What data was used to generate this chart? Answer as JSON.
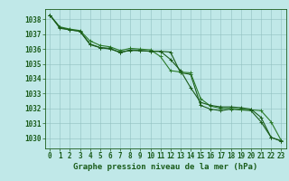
{
  "title": "Graphe pression niveau de la mer (hPa)",
  "background_color": "#c0e8e8",
  "grid_color": "#90c0c0",
  "line_color1": "#1a5c1a",
  "line_color2": "#2a7a2a",
  "line_color3": "#1a5c1a",
  "xlim": [
    -0.5,
    23.5
  ],
  "ylim": [
    1029.3,
    1038.7
  ],
  "yticks": [
    1030,
    1031,
    1032,
    1033,
    1034,
    1035,
    1036,
    1037,
    1038
  ],
  "xticks": [
    0,
    1,
    2,
    3,
    4,
    5,
    6,
    7,
    8,
    9,
    10,
    11,
    12,
    13,
    14,
    15,
    16,
    17,
    18,
    19,
    20,
    21,
    22,
    23
  ],
  "series1": [
    1038.3,
    1037.4,
    1037.3,
    1037.2,
    1036.3,
    1036.1,
    1036.0,
    1035.8,
    1035.9,
    1035.9,
    1035.85,
    1035.85,
    1035.8,
    1034.4,
    1034.3,
    1032.2,
    1031.95,
    1031.85,
    1031.95,
    1031.9,
    1031.85,
    1031.1,
    1030.05,
    1029.8
  ],
  "series2": [
    1038.3,
    1037.5,
    1037.35,
    1037.25,
    1036.55,
    1036.25,
    1036.15,
    1035.9,
    1036.05,
    1036.0,
    1035.95,
    1035.5,
    1034.55,
    1034.45,
    1034.4,
    1032.65,
    1032.15,
    1032.0,
    1032.0,
    1031.95,
    1031.9,
    1031.85,
    1031.1,
    1029.85
  ],
  "series3": [
    1038.3,
    1037.45,
    1037.3,
    1037.2,
    1036.35,
    1036.1,
    1036.05,
    1035.75,
    1035.95,
    1035.9,
    1035.85,
    1035.85,
    1035.3,
    1034.55,
    1033.4,
    1032.4,
    1032.2,
    1032.1,
    1032.1,
    1032.05,
    1031.95,
    1031.4,
    1030.05,
    1029.8
  ],
  "marker": "+",
  "marker_size": 3,
  "linewidth": 0.8,
  "tick_fontsize": 5.5,
  "title_fontsize": 6.5
}
